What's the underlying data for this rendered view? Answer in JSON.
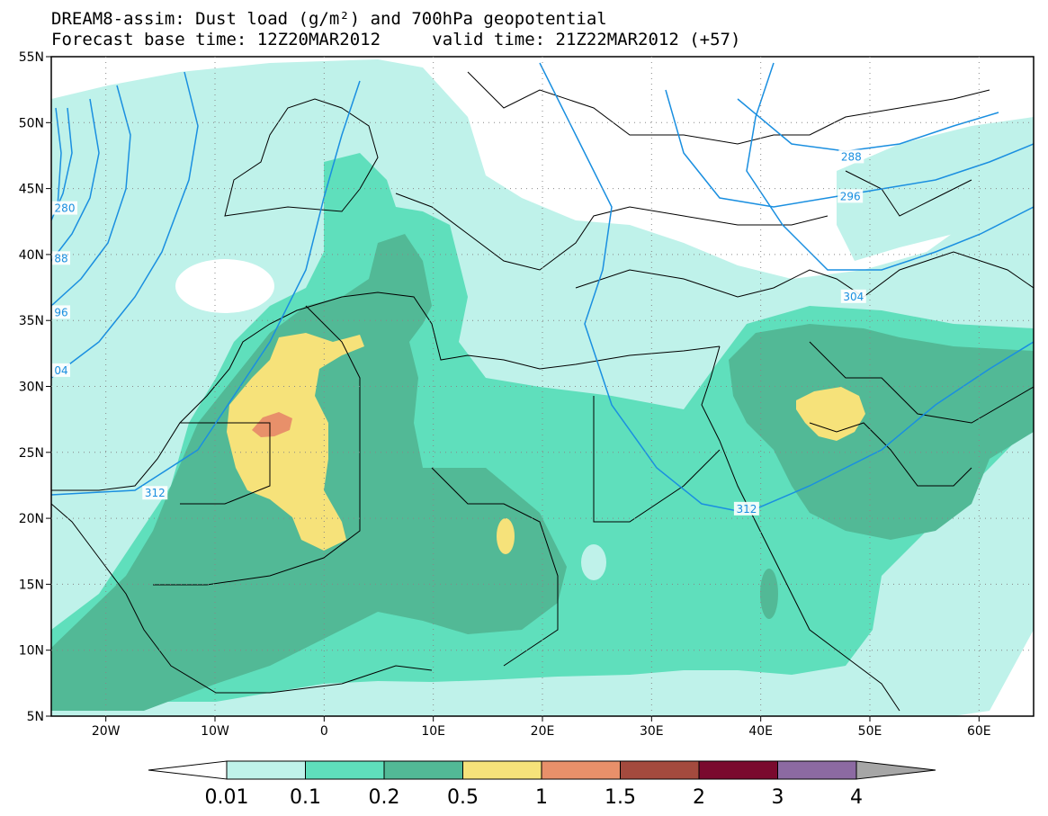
{
  "title": {
    "line1": "DREAM8-assim: Dust load (g/m²) and 700hPa geopotential",
    "line2_left": "Forecast base time: 12Z20MAR2012",
    "line2_right": "valid time: 21Z22MAR2012 (+57)"
  },
  "map": {
    "lon_range": [
      -25,
      65
    ],
    "lat_range": [
      5,
      55
    ],
    "x_ticks": [
      "20W",
      "10W",
      "0",
      "10E",
      "20E",
      "30E",
      "40E",
      "50E",
      "60E"
    ],
    "x_tick_values": [
      -20,
      -10,
      0,
      10,
      20,
      30,
      40,
      50,
      60
    ],
    "y_ticks": [
      "55N",
      "50N",
      "45N",
      "40N",
      "35N",
      "30N",
      "25N",
      "20N",
      "15N",
      "10N",
      "5N"
    ],
    "y_tick_values": [
      55,
      50,
      45,
      40,
      35,
      30,
      25,
      20,
      15,
      10,
      5
    ],
    "grid": "dotted",
    "contour_color": "#1a8fe0",
    "contour_labels": [
      {
        "text": "312",
        "lon": -15.5,
        "lat": 21.9
      },
      {
        "text": "312",
        "lon": 38.7,
        "lat": 20.7
      },
      {
        "text": "304",
        "lon": 48.5,
        "lat": 36.8
      },
      {
        "text": "296",
        "lon": 48.2,
        "lat": 44.4
      },
      {
        "text": "288",
        "lon": 48.3,
        "lat": 47.4
      },
      {
        "text": "280",
        "lon": -25.0,
        "lat": 43.5
      },
      {
        "text": "88",
        "lon": -25.0,
        "lat": 39.7
      },
      {
        "text": "96",
        "lon": -25.0,
        "lat": 35.6
      },
      {
        "text": "04",
        "lon": -25.0,
        "lat": 31.2
      }
    ]
  },
  "colorbar": {
    "labels": [
      "0.01",
      "0.1",
      "0.2",
      "0.5",
      "1",
      "1.5",
      "2",
      "3",
      "4"
    ],
    "colors": [
      "#ffffff",
      "#bff2ea",
      "#5fdfbc",
      "#52b996",
      "#f6e27a",
      "#e8906a",
      "#a44a3e",
      "#7a0a2e",
      "#8c6aa2",
      "#a6a6a6"
    ],
    "unit": "g/m²"
  },
  "chart_data": {
    "type": "heatmap",
    "title": "DREAM8-assim: Dust load (g/m²) and 700hPa geopotential",
    "levels": [
      0.01,
      0.1,
      0.2,
      0.5,
      1,
      1.5,
      2,
      3,
      4
    ],
    "xlim": [
      -25,
      65
    ],
    "ylim": [
      5,
      55
    ]
  }
}
